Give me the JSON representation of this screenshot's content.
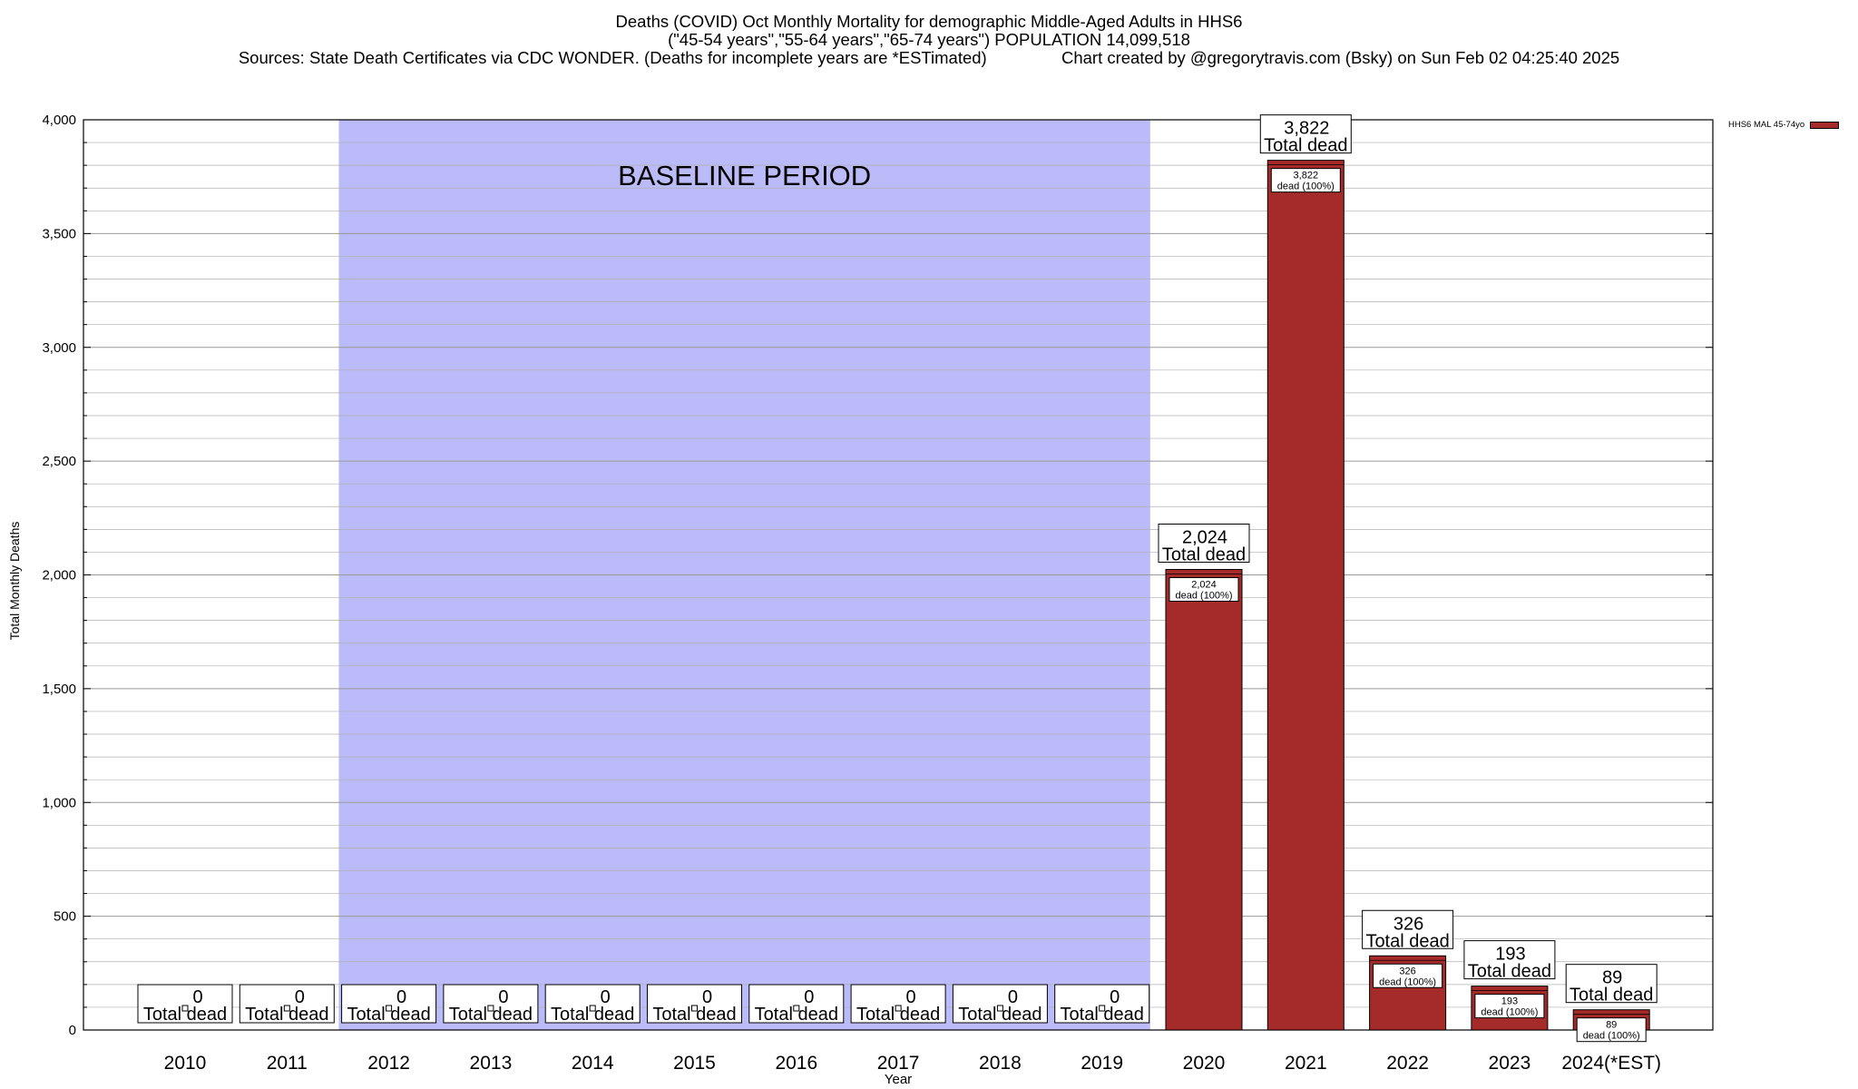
{
  "title": {
    "line1": "Deaths (COVID) Oct Monthly Mortality for demographic Middle-Aged Adults in HHS6",
    "line2": "(\"45-54 years\",\"55-64 years\",\"65-74 years\") POPULATION 14,099,518",
    "line3_left": "Sources: State Death Certificates via CDC WONDER. (Deaths for incomplete years are *ESTimated)",
    "line3_right": "Chart created by @gregorytravis.com (Bsky) on Sun Feb 02 04:25:40 2025"
  },
  "legend": {
    "label": "HHS6 MAL 45-74yo",
    "color": "#a52a2a"
  },
  "colors": {
    "bar": "#a52a2a",
    "baseline": "#bbbbf9",
    "grid": "#b0b0b0"
  },
  "chart_data": {
    "type": "bar",
    "categories": [
      "2010",
      "2011",
      "2012",
      "2013",
      "2014",
      "2015",
      "2016",
      "2017",
      "2018",
      "2019",
      "2020",
      "2021",
      "2022",
      "2023",
      "2024(*EST)"
    ],
    "values": [
      0,
      0,
      0,
      0,
      0,
      0,
      0,
      0,
      0,
      0,
      2024,
      3822,
      326,
      193,
      89
    ],
    "value_labels": [
      "0",
      "0",
      "0",
      "0",
      "0",
      "0",
      "0",
      "0",
      "0",
      "0",
      "2,024",
      "3,822",
      "326",
      "193",
      "89"
    ],
    "total_label": "Total dead",
    "inner_label_suffix": "dead (100%)",
    "xlabel": "Year",
    "ylabel": "Total Monthly Deaths",
    "ylim": [
      0,
      4000
    ],
    "yticks": [
      0,
      500,
      1000,
      1500,
      2000,
      2500,
      3000,
      3500,
      4000
    ],
    "ytick_labels": [
      "0",
      "500",
      "1,000",
      "1,500",
      "2,000",
      "2,500",
      "3,000",
      "3,500",
      "4,000"
    ],
    "minor_grid_step": 100,
    "grid": true,
    "legend_position": "top-right",
    "baseline_period": {
      "label": "BASELINE PERIOD",
      "start": "2012",
      "end": "2019"
    }
  }
}
